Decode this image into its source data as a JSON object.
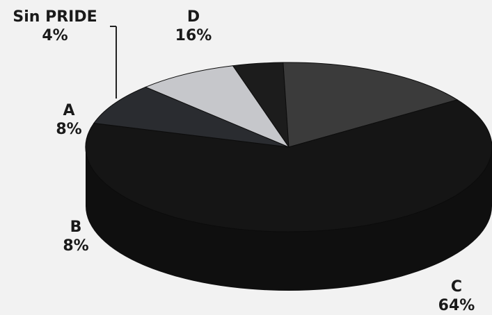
{
  "chart_data": {
    "type": "pie",
    "style": "3d",
    "slices": [
      {
        "label": "Sin PRIDE",
        "value": 4,
        "display": "4%",
        "color": "#1c1c1c"
      },
      {
        "label": "D",
        "value": 16,
        "display": "16%",
        "color": "#3b3b3b"
      },
      {
        "label": "C",
        "value": 64,
        "display": "64%",
        "color": "#151515"
      },
      {
        "label": "B",
        "value": 8,
        "display": "8%",
        "color": "#2a2c30"
      },
      {
        "label": "A",
        "value": 8,
        "display": "8%",
        "color": "#c6c7cb"
      }
    ],
    "legend": "none"
  }
}
